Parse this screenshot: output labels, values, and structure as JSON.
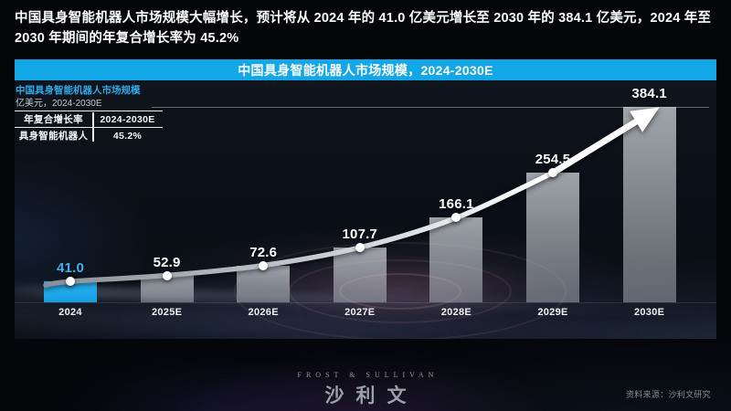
{
  "slide": {
    "headline": "中国具身智能机器人市场规模大幅增长，预计将从 2024 年的 41.0 亿美元增长至 2030 年的 384.1 亿美元，2024 年至 2030 年期间的年复合增长率为 45.2%"
  },
  "banner": {
    "title": "中国具身智能机器人市场规模，2024-2030E",
    "bg_color": "#14a7e8"
  },
  "chart_header": {
    "title": "中国具身智能机器人市场规模",
    "unit": "亿美元，2024-2030E"
  },
  "cagr_table": {
    "col_headers": [
      "年复合增长率",
      "2024-2030E"
    ],
    "rows": [
      {
        "label": "具身智能机器人",
        "value": "45.2%"
      }
    ]
  },
  "chart_data": {
    "type": "bar",
    "title": "中国具身智能机器人市场规模，2024-2030E",
    "categories": [
      "2024",
      "2025E",
      "2026E",
      "2027E",
      "2028E",
      "2029E",
      "2030E"
    ],
    "values": [
      41.0,
      52.9,
      72.6,
      107.7,
      166.1,
      254.5,
      384.1
    ],
    "value_labels": [
      "41.0",
      "52.9",
      "72.6",
      "107.7",
      "166.1",
      "254.5",
      "384.1"
    ],
    "xlabel": "",
    "ylabel": "亿美元",
    "ylim": [
      0,
      384.1
    ],
    "highlight_index": 0,
    "highlight_color": "#1ba8e9",
    "bar_color": "rgba(203,208,215,0.62)",
    "cagr_2024_2030E": "45.2%",
    "trend_line": "smooth light curve through bar tops ending in white up-right arrow at the 2030E bar",
    "grid": "single horizontal reference line at the 384.1 level",
    "legend": "none"
  },
  "footer": {
    "logo_line1": "FROST & SULLIVAN",
    "logo_line2": "沙利文",
    "source": "资料来源：沙利文研究"
  },
  "colors": {
    "accent_blue": "#14a7e8",
    "value_blue": "#3cb4f0",
    "panel_dark": "#0b0f17"
  }
}
